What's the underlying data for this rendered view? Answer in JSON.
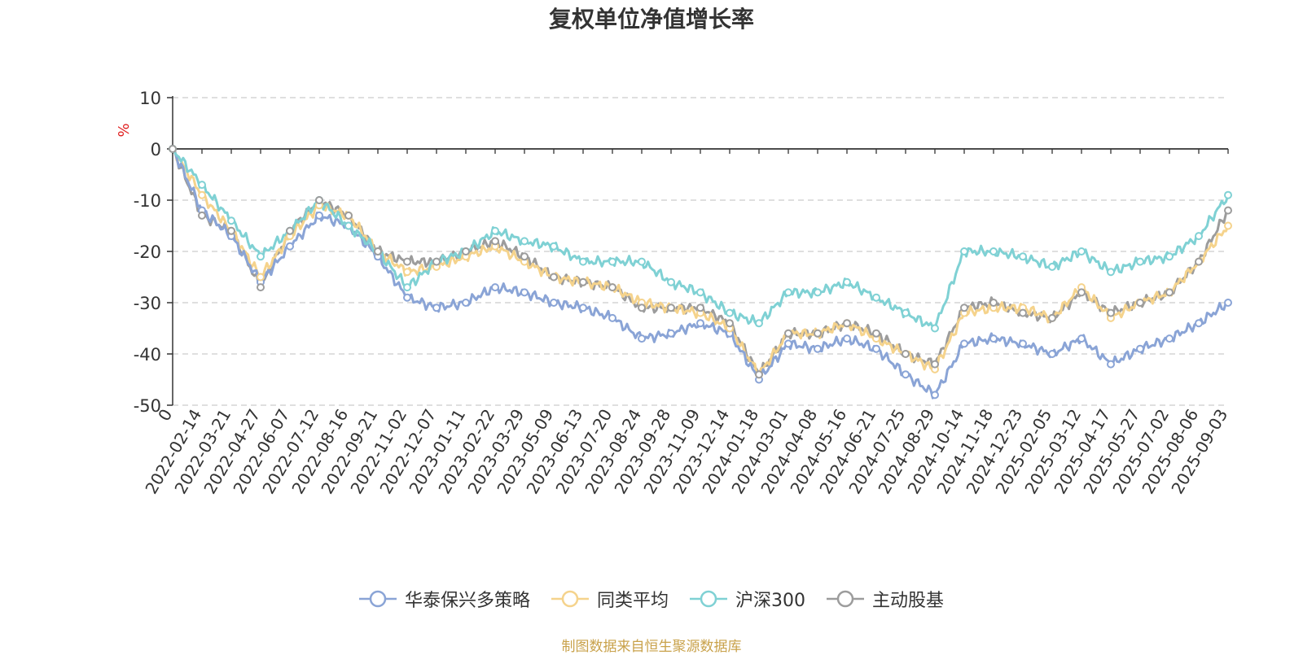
{
  "chart_data": {
    "type": "line",
    "title": "复权单位净值增长率",
    "ylabel": "%",
    "ylim": [
      -50,
      10
    ],
    "yticks": [
      "10",
      "0",
      "-10",
      "-20",
      "-30",
      "-40",
      "-50"
    ],
    "categories": [
      "0",
      "2022-02-14",
      "2022-03-21",
      "2022-04-27",
      "2022-06-07",
      "2022-07-12",
      "2022-08-16",
      "2022-09-21",
      "2022-11-02",
      "2022-12-07",
      "2023-01-11",
      "2023-02-22",
      "2023-03-29",
      "2023-05-09",
      "2023-06-13",
      "2023-07-20",
      "2023-08-24",
      "2023-09-28",
      "2023-11-09",
      "2023-12-14",
      "2024-01-18",
      "2024-03-01",
      "2024-04-08",
      "2024-05-16",
      "2024-06-21",
      "2024-07-25",
      "2024-08-29",
      "2024-10-14",
      "2024-11-18",
      "2024-12-23",
      "2025-02-05",
      "2025-03-12",
      "2025-04-17",
      "2025-05-27",
      "2025-07-02",
      "2025-08-06",
      "2025-09-03"
    ],
    "grid": true,
    "legend_position": "bottom",
    "series": [
      {
        "name": "华泰保兴多策略",
        "color": "#8aa4d6",
        "values": [
          0,
          -12,
          -17,
          -26,
          -19,
          -13,
          -15,
          -21,
          -29,
          -31,
          -30,
          -27,
          -28,
          -30,
          -31,
          -33,
          -37,
          -36,
          -34,
          -36,
          -45,
          -38,
          -39,
          -37,
          -39,
          -44,
          -48,
          -38,
          -37,
          -38,
          -40,
          -37,
          -42,
          -39,
          -37,
          -34,
          -30
        ]
      },
      {
        "name": "同类平均",
        "color": "#f5d38c",
        "values": [
          0,
          -9,
          -16,
          -25,
          -17,
          -11,
          -13,
          -20,
          -24,
          -23,
          -21,
          -19,
          -22,
          -25,
          -26,
          -27,
          -30,
          -31,
          -32,
          -35,
          -44,
          -36,
          -36,
          -34,
          -37,
          -40,
          -43,
          -32,
          -31,
          -31,
          -33,
          -27,
          -33,
          -30,
          -28,
          -22,
          -15
        ]
      },
      {
        "name": "沪深300",
        "color": "#7fd1d4",
        "values": [
          0,
          -7,
          -14,
          -21,
          -16,
          -10,
          -15,
          -20,
          -27,
          -22,
          -20,
          -16,
          -18,
          -19,
          -22,
          -22,
          -22,
          -26,
          -28,
          -32,
          -34,
          -28,
          -28,
          -26,
          -29,
          -32,
          -35,
          -20,
          -20,
          -21,
          -23,
          -20,
          -24,
          -22,
          -21,
          -17,
          -9
        ]
      },
      {
        "name": "主动股基",
        "color": "#9c9c9c",
        "values": [
          0,
          -13,
          -16,
          -27,
          -16,
          -10,
          -13,
          -20,
          -22,
          -22,
          -20,
          -18,
          -21,
          -25,
          -26,
          -27,
          -31,
          -31,
          -31,
          -34,
          -44,
          -36,
          -36,
          -34,
          -36,
          -40,
          -42,
          -31,
          -30,
          -32,
          -33,
          -28,
          -32,
          -30,
          -28,
          -22,
          -12
        ]
      }
    ]
  },
  "source_note": "制图数据来自恒生聚源数据库"
}
